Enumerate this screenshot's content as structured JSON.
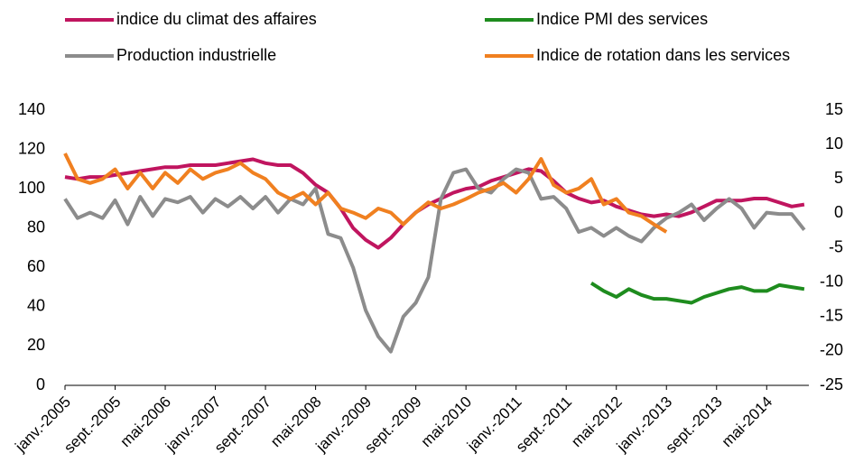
{
  "chart_data": {
    "type": "line",
    "categories": [
      "janv.-2005",
      null,
      null,
      null,
      "sept.-2005",
      null,
      null,
      null,
      "mai-2006",
      null,
      null,
      null,
      "janv.-2007",
      null,
      null,
      null,
      "sept.-2007",
      null,
      null,
      null,
      "mai-2008",
      null,
      null,
      null,
      "janv.-2009",
      null,
      null,
      null,
      "sept.-2009",
      null,
      null,
      null,
      "mai-2010",
      null,
      null,
      null,
      "janv.-2011",
      null,
      null,
      null,
      "sept.-2011",
      null,
      null,
      null,
      "mai-2012",
      null,
      null,
      null,
      "janv.-2013",
      null,
      null,
      null,
      "sept.-2013",
      null,
      null,
      null,
      "mai-2014",
      null,
      null,
      null
    ],
    "series": [
      {
        "name": "indice du climat des affaires",
        "color": "#c0155f",
        "axis": "y",
        "values": [
          106,
          105,
          106,
          106,
          107,
          108,
          109,
          110,
          111,
          111,
          112,
          112,
          112,
          113,
          114,
          115,
          113,
          112,
          112,
          108,
          102,
          98,
          90,
          80,
          74,
          70,
          75,
          82,
          88,
          92,
          95,
          98,
          100,
          101,
          104,
          106,
          108,
          110,
          109,
          104,
          98,
          95,
          93,
          94,
          91,
          89,
          87,
          86,
          87,
          86,
          88,
          91,
          94,
          94,
          94,
          95,
          95,
          93,
          91,
          92
        ]
      },
      {
        "name": "Production industrielle",
        "color": "#8c8c8c",
        "axis": "y2",
        "values": [
          2.1,
          -0.7,
          0.1,
          -0.7,
          1.9,
          -1.6,
          2.4,
          -0.4,
          2.1,
          1.6,
          2.4,
          0.1,
          2.1,
          1,
          2.4,
          0.7,
          2.4,
          0.1,
          2.1,
          1.3,
          3.6,
          -3,
          -3.6,
          -7.9,
          -14.1,
          -17.9,
          -20.1,
          -15,
          -13,
          -9.3,
          2.1,
          5.9,
          6.4,
          3.6,
          3,
          5,
          6.4,
          5.9,
          2.1,
          2.4,
          0.7,
          -2.7,
          -2.1,
          -3.3,
          -2.1,
          -3.3,
          -4.1,
          -2.1,
          -0.7,
          0.1,
          1.3,
          -1,
          0.7,
          2.1,
          0.7,
          -2.1,
          0.1,
          -0.1,
          -0.1,
          -2.4
        ]
      },
      {
        "name": "Indice PMI des services",
        "color": "#1e8c1e",
        "axis": "y",
        "values": [
          null,
          null,
          null,
          null,
          null,
          null,
          null,
          null,
          null,
          null,
          null,
          null,
          null,
          null,
          null,
          null,
          null,
          null,
          null,
          null,
          null,
          null,
          null,
          null,
          null,
          null,
          null,
          null,
          null,
          null,
          null,
          null,
          null,
          null,
          null,
          null,
          null,
          null,
          null,
          null,
          null,
          null,
          52,
          48,
          45,
          49,
          46,
          44,
          44,
          43,
          42,
          45,
          47,
          49,
          50,
          48,
          48,
          51,
          50,
          49
        ]
      },
      {
        "name": "Indice de rotation dans les services",
        "color": "#f08020",
        "axis": "y2",
        "values": [
          8.7,
          5,
          4.4,
          5,
          6.4,
          3.6,
          5.9,
          3.6,
          5.9,
          4.4,
          6.4,
          5,
          5.9,
          6.4,
          7.3,
          5.9,
          5,
          3,
          2.1,
          3,
          1.3,
          3,
          0.7,
          0.1,
          -0.7,
          0.7,
          0.1,
          -1.6,
          0.1,
          1.6,
          0.7,
          1.3,
          2.1,
          3,
          3.6,
          4.4,
          3,
          5,
          7.9,
          4.1,
          3,
          3.6,
          5,
          1.3,
          2.1,
          0.1,
          -0.4,
          -1.6,
          -2.7,
          null,
          null,
          null,
          null,
          null,
          null,
          null,
          null,
          null,
          null,
          null
        ]
      }
    ],
    "ylim": [
      0,
      140
    ],
    "yticks": [
      0,
      20,
      40,
      60,
      80,
      100,
      120,
      140
    ],
    "y2lim": [
      -25,
      15
    ],
    "y2ticks": [
      -25,
      -20,
      -15,
      -10,
      -5,
      0,
      5,
      10,
      15
    ]
  }
}
